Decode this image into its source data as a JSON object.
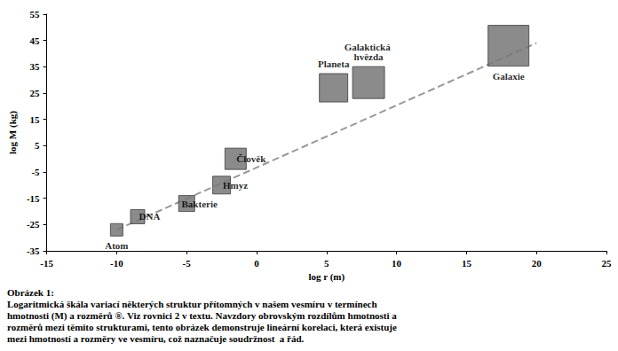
{
  "chart_data": {
    "type": "scatter",
    "title": "Obrázek 1:",
    "subtitle": "Logaritmická škála variací některých struktur přítomných v našem vesmíru v termínech\nhmotnosti (M) a rozměrů ®. Viz rovnici 2 v textu. Navzdory obrovským rozdílům hmotnosti a\nrozměrů mezi těmito strukturami, tento obrázek demonstruje lineární korelaci, která existuje\nmezi hmotností a rozměry ve vesmíru, což naznačuje soudržnost  a řád.",
    "x_label": "log r (m)",
    "y_label": "log M (kg)",
    "labels": [
      "Atom",
      "DNA",
      "Bakterie",
      "Hmyz",
      "Člověk",
      "Planeta",
      "Galaktická hvězda",
      "Galaxie"
    ],
    "x": [
      -10,
      -8.5,
      -5,
      -2.5,
      -1.5,
      5.5,
      8,
      18
    ],
    "values": [
      -27,
      -22,
      -17,
      -10,
      0,
      27,
      29,
      43
    ],
    "color": "#777777",
    "marker": "square",
    "trend_line": {
      "x": [
        -10,
        20
      ],
      "values": [
        -27,
        44
      ],
      "line_style": "dashed",
      "color": "#999999"
    },
    "xlim": [
      -15,
      25
    ],
    "xticks": [
      -15,
      -10,
      -5,
      0,
      5,
      10,
      15,
      20,
      25
    ],
    "ylim": [
      -35,
      55
    ],
    "yticks": [
      -35,
      -25,
      -15,
      -5,
      5,
      15,
      25,
      35,
      45,
      55
    ],
    "grid": false
  }
}
